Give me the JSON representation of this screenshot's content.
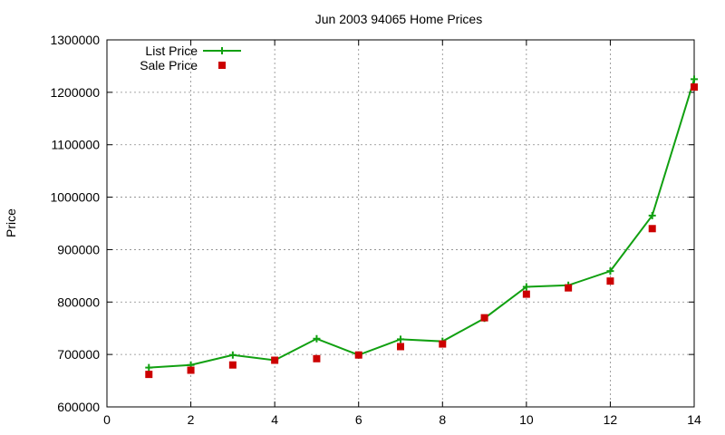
{
  "chart_data": {
    "type": "line",
    "title": "Jun 2003 94065 Home Prices",
    "xlabel": "",
    "ylabel": "Price",
    "xlim": [
      0,
      14
    ],
    "ylim": [
      600000,
      1300000
    ],
    "x_ticks": [
      0,
      2,
      4,
      6,
      8,
      10,
      12,
      14
    ],
    "y_ticks": [
      600000,
      700000,
      800000,
      900000,
      1000000,
      1100000,
      1200000,
      1300000
    ],
    "grid": true,
    "legend_position": "top-left",
    "series": [
      {
        "name": "List Price",
        "style": "line+cross",
        "color": "#11a011",
        "x": [
          1,
          2,
          3,
          4,
          5,
          6,
          7,
          8,
          9,
          10,
          11,
          12,
          13,
          14
        ],
        "y": [
          675000,
          680000,
          699000,
          689000,
          730000,
          699000,
          729000,
          725000,
          769000,
          829000,
          832000,
          859000,
          965000,
          1225000
        ]
      },
      {
        "name": "Sale Price",
        "style": "square",
        "color": "#cc0000",
        "x": [
          1,
          2,
          3,
          4,
          5,
          6,
          7,
          8,
          9,
          10,
          11,
          12,
          13,
          14
        ],
        "y": [
          662000,
          670000,
          680000,
          689000,
          692000,
          699000,
          715000,
          720000,
          770000,
          815000,
          827000,
          840000,
          940000,
          1210000
        ]
      }
    ]
  }
}
